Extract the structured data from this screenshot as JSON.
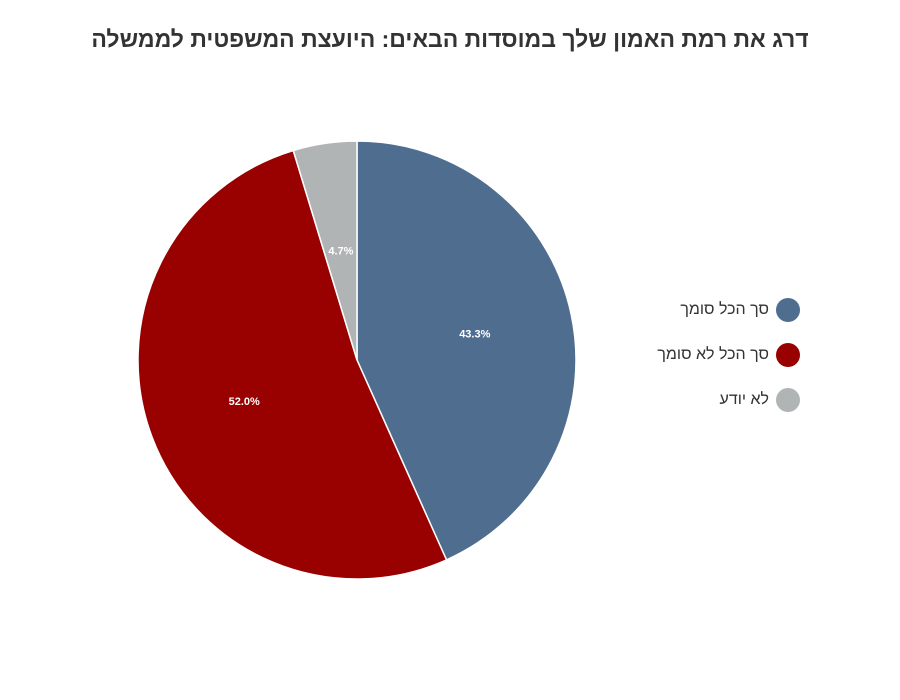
{
  "chart_data": {
    "type": "pie",
    "title": "דרג את רמת האמון שלך במוסדות הבאים: היועצת המשפטית לממשלה",
    "categories": [
      "סך הכל סומך",
      "סך הכל לא סומך",
      "לא יודע"
    ],
    "values": [
      43.3,
      52.0,
      4.7
    ],
    "labels": [
      "43.3%",
      "52.0%",
      "4.7%"
    ],
    "colors": [
      "#4f6d8f",
      "#990000",
      "#b0b4b5"
    ],
    "legend_position": "right"
  }
}
